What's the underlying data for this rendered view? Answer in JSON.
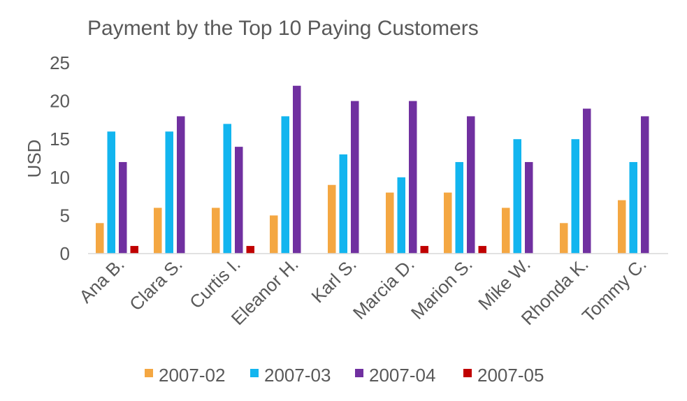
{
  "chart_data": {
    "type": "bar",
    "title": "Payment by the Top 10 Paying Customers",
    "xlabel": "",
    "ylabel": "USD",
    "ylim": [
      0,
      25
    ],
    "yticks": [
      0,
      5,
      10,
      15,
      20,
      25
    ],
    "grid": false,
    "legend_position": "bottom",
    "categories": [
      "Ana B.",
      "Clara S.",
      "Curtis I.",
      "Eleanor H.",
      "Karl S.",
      "Marcia D.",
      "Marion S.",
      "Mike W.",
      "Rhonda K.",
      "Tommy C."
    ],
    "series": [
      {
        "name": "2007-02",
        "color": "#f4a742",
        "values": [
          4,
          6,
          6,
          5,
          9,
          8,
          8,
          6,
          4,
          7
        ]
      },
      {
        "name": "2007-03",
        "color": "#12b5ef",
        "values": [
          16,
          16,
          17,
          18,
          13,
          10,
          12,
          15,
          15,
          12
        ]
      },
      {
        "name": "2007-04",
        "color": "#7030a0",
        "values": [
          12,
          18,
          14,
          22,
          20,
          20,
          18,
          12,
          19,
          18
        ]
      },
      {
        "name": "2007-05",
        "color": "#c00000",
        "values": [
          1,
          0,
          1,
          0,
          0,
          1,
          1,
          0,
          0,
          0
        ]
      }
    ]
  }
}
